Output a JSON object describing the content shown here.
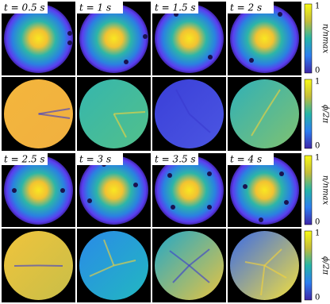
{
  "time_labels": [
    "t = 0.5 s",
    "t = 1 s",
    "t = 1.5 s",
    "t = 2 s",
    "t = 2.5 s",
    "t = 3 s",
    "t = 3.5 s",
    "t = 4 s"
  ],
  "colorbars": [
    {
      "label": "n/nmax",
      "ticks": [
        "1",
        "0"
      ]
    },
    {
      "label": "ϕ/2π",
      "ticks": [
        "1",
        "0"
      ]
    },
    {
      "label": "n/nmax",
      "ticks": [
        "1",
        "0"
      ]
    },
    {
      "label": "ϕ/2π",
      "ticks": [
        "1",
        "0"
      ]
    }
  ]
}
